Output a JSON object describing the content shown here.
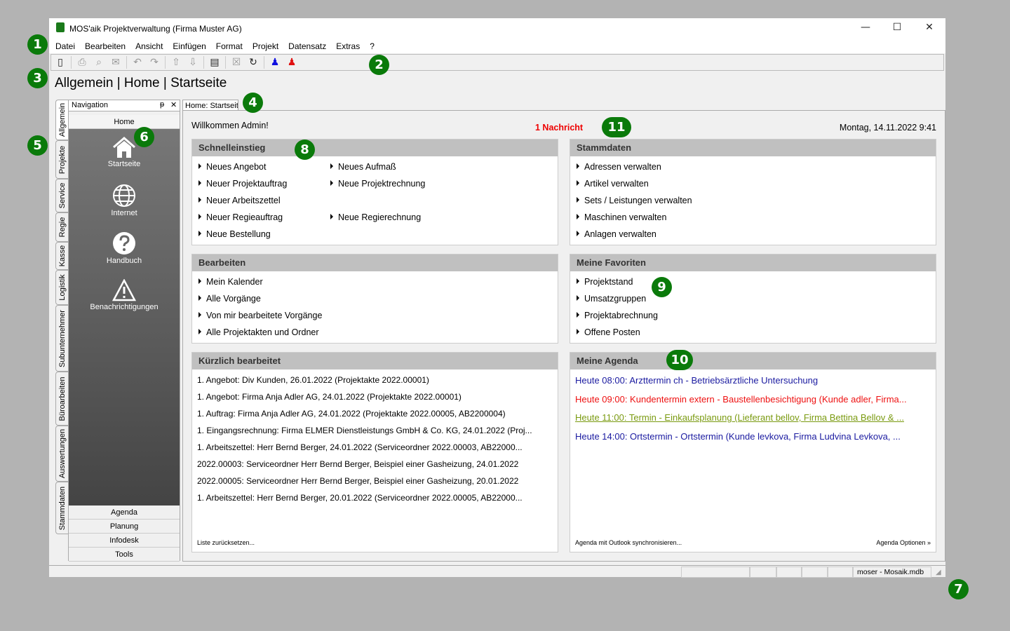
{
  "window": {
    "title": "MOS'aik Projektverwaltung (Firma Muster AG)",
    "minimize": "—",
    "maximize": "☐",
    "close": "✕"
  },
  "menu": [
    "Datei",
    "Bearbeiten",
    "Ansicht",
    "Einfügen",
    "Format",
    "Projekt",
    "Datensatz",
    "Extras",
    "?"
  ],
  "breadcrumb": "Allgemein | Home | Startseite",
  "vertical_tabs": [
    "Allgemein",
    "Projekte",
    "Service",
    "Regie",
    "Kasse",
    "Logistik",
    "Subunternehmer",
    "Büroarbeiten",
    "Auswertungen",
    "Stammdaten"
  ],
  "navigation": {
    "title": "Navigation",
    "pin": "ᵽ",
    "close": "✕",
    "home": "Home",
    "items": [
      "Startseite",
      "Internet",
      "Handbuch",
      "Benachrichtigungen"
    ],
    "bottom": [
      "Agenda",
      "Planung",
      "Infodesk",
      "Tools"
    ]
  },
  "content_tab": "Home: Startseite",
  "welcome": "Willkommen Admin!",
  "message": "1 Nachricht",
  "datetime": "Montag, 14.11.2022 9:41",
  "schnelleinstieg": {
    "title": "Schnelleinstieg",
    "col1": [
      "Neues Angebot",
      "Neuer Projektauftrag",
      "Neuer Arbeitszettel",
      "Neuer Regieauftrag",
      "Neue Bestellung"
    ],
    "col2": [
      "Neues Aufmaß",
      "Neue Projektrechnung",
      "",
      "Neue Regierechnung"
    ]
  },
  "stammdaten": {
    "title": "Stammdaten",
    "items": [
      "Adressen verwalten",
      "Artikel verwalten",
      "Sets / Leistungen verwalten",
      "Maschinen verwalten",
      "Anlagen verwalten"
    ]
  },
  "bearbeiten": {
    "title": "Bearbeiten",
    "items": [
      "Mein Kalender",
      "Alle Vorgänge",
      "Von mir bearbeitete Vorgänge",
      "Alle Projektakten und Ordner"
    ]
  },
  "favoriten": {
    "title": "Meine Favoriten",
    "items": [
      "Projektstand",
      "Umsatzgruppen",
      "Projektabrechnung",
      "Offene Posten"
    ]
  },
  "kuerzlich": {
    "title": "Kürzlich bearbeitet",
    "items": [
      "1. Angebot: Div Kunden, 26.01.2022 (Projektakte 2022.00001)",
      "1. Angebot: Firma Anja Adler AG, 24.01.2022 (Projektakte 2022.00001)",
      "1. Auftrag: Firma Anja Adler AG, 24.01.2022 (Projektakte 2022.00005, AB2200004)",
      "1. Eingangsrechnung: Firma ELMER Dienstleistungs GmbH & Co. KG, 24.01.2022 (Proj...",
      "1. Arbeitszettel: Herr Bernd Berger, 24.01.2022 (Serviceordner 2022.00003, AB22000...",
      "2022.00003: Serviceordner Herr Bernd Berger, Beispiel einer Gasheizung, 24.01.2022",
      "2022.00005: Serviceordner Herr Bernd Berger, Beispiel einer Gasheizung, 20.01.2022",
      "1. Arbeitszettel: Herr Bernd Berger, 20.01.2022 (Serviceordner 2022.00005, AB22000..."
    ],
    "reset": "Liste zurücksetzen..."
  },
  "agenda": {
    "title": "Meine Agenda",
    "items": [
      {
        "text": "Heute 08:00: Arzttermin ch - Betriebsärztliche Untersuchung",
        "color": "#1a1aa0"
      },
      {
        "text": "Heute 09:00: Kundentermin extern - Baustellenbesichtigung (Kunde adler, Firma...",
        "color": "#ee1111"
      },
      {
        "text": "Heute 11:00: Termin - Einkaufsplanung (Lieferant bellov, Firma Bettina Bellov & ...",
        "color": "#7a9a10"
      },
      {
        "text": "Heute 14:00: Ortstermin - Ortstermin (Kunde levkova, Firma Ludvina Levkova, ...",
        "color": "#1a1aa0"
      }
    ],
    "sync": "Agenda mit Outlook synchronisieren...",
    "options": "Agenda Optionen »"
  },
  "status": {
    "user_db": "moser - Mosaik.mdb"
  },
  "callouts": [
    "1",
    "2",
    "3",
    "4",
    "5",
    "6",
    "7",
    "8",
    "9",
    "10",
    "11"
  ]
}
